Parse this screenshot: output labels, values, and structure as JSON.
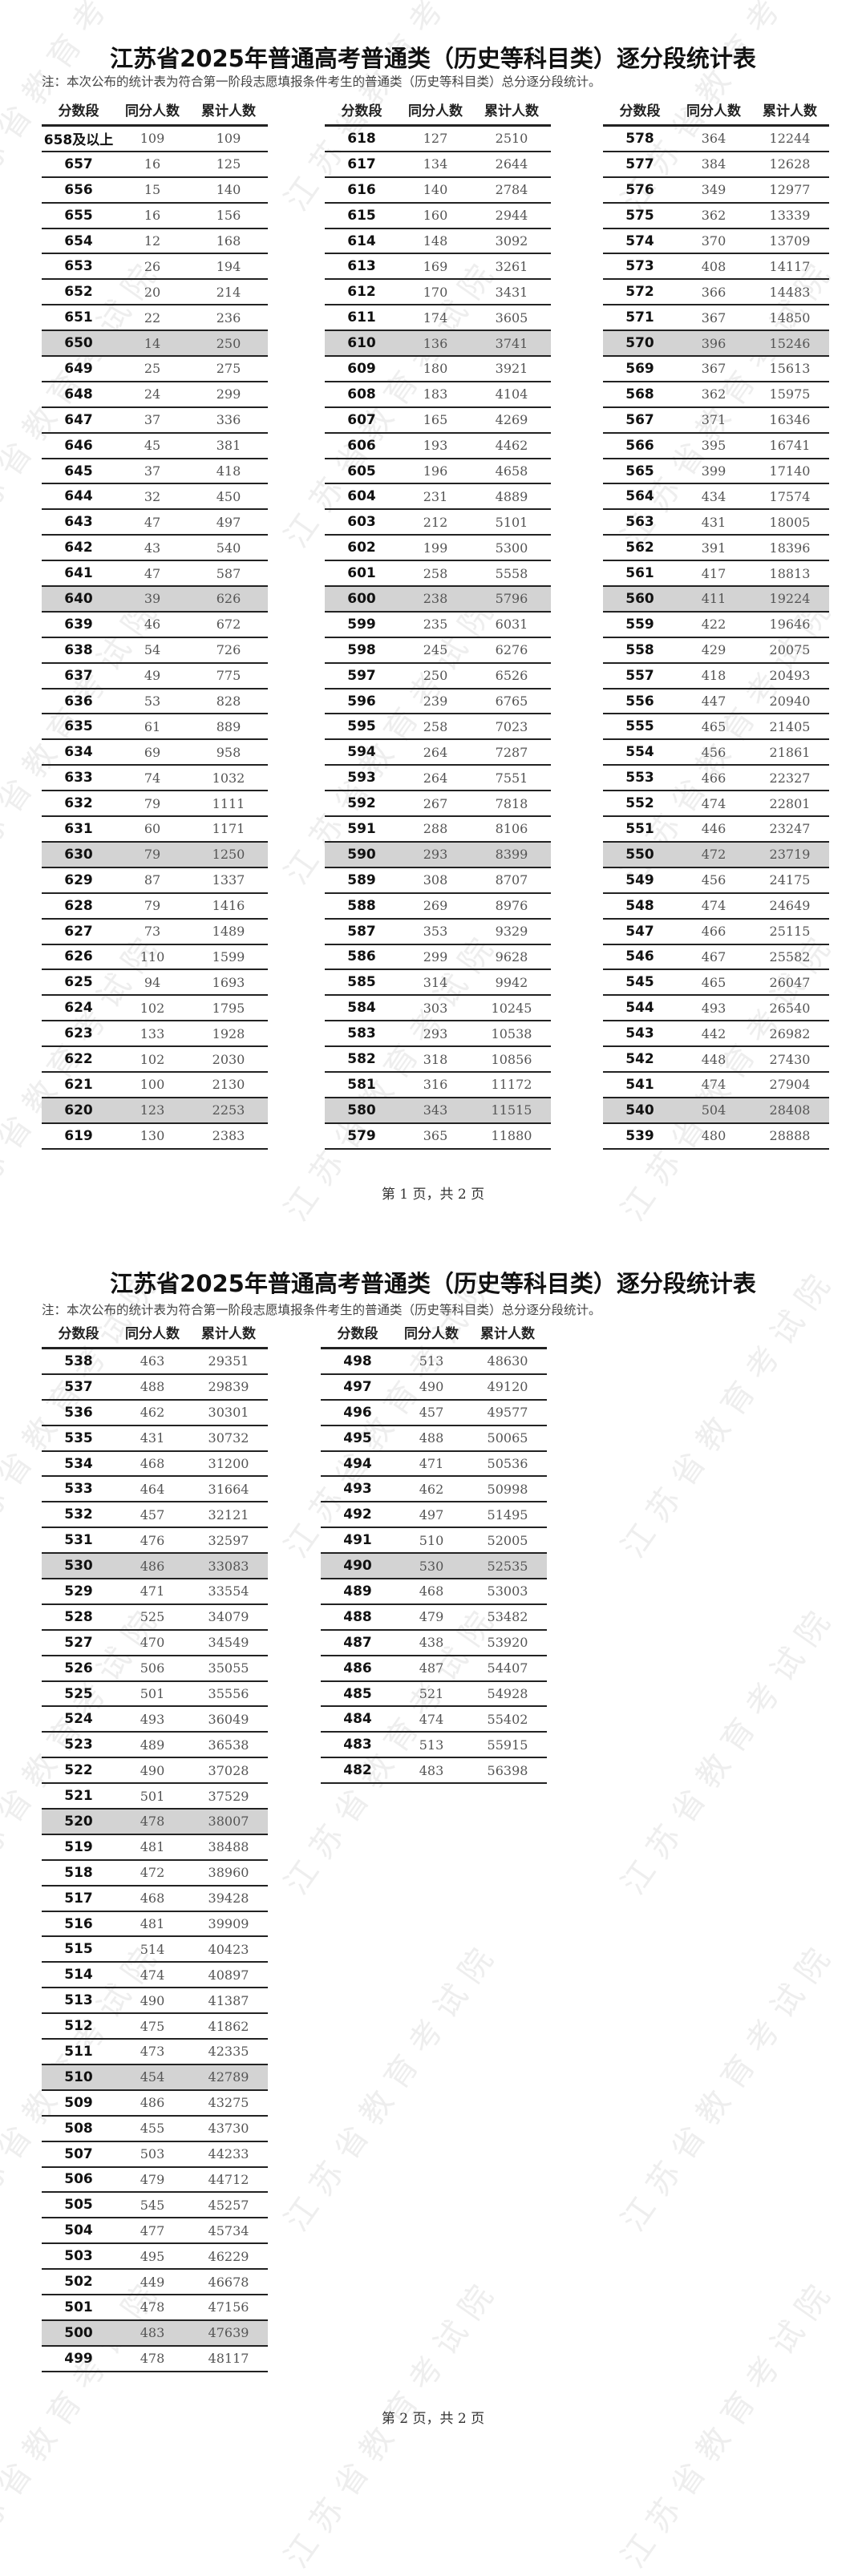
{
  "watermark": "江苏省教育考试院",
  "pages": [
    {
      "title": "江苏省2025年普通高考普通类（历史等科目类）逐分段统计表",
      "note": "注：本次公布的统计表为符合第一阶段志愿填报条件考生的普通类（历史等科目类）总分逐分段统计。",
      "headers": [
        "分数段",
        "同分人数",
        "累计人数"
      ],
      "footer": "第 1 页，共 2 页",
      "columns": [
        [
          [
            "658及以上",
            "109",
            "109"
          ],
          [
            "657",
            "16",
            "125"
          ],
          [
            "656",
            "15",
            "140"
          ],
          [
            "655",
            "16",
            "156"
          ],
          [
            "654",
            "12",
            "168"
          ],
          [
            "653",
            "26",
            "194"
          ],
          [
            "652",
            "20",
            "214"
          ],
          [
            "651",
            "22",
            "236"
          ],
          [
            "650",
            "14",
            "250"
          ],
          [
            "649",
            "25",
            "275"
          ],
          [
            "648",
            "24",
            "299"
          ],
          [
            "647",
            "37",
            "336"
          ],
          [
            "646",
            "45",
            "381"
          ],
          [
            "645",
            "37",
            "418"
          ],
          [
            "644",
            "32",
            "450"
          ],
          [
            "643",
            "47",
            "497"
          ],
          [
            "642",
            "43",
            "540"
          ],
          [
            "641",
            "47",
            "587"
          ],
          [
            "640",
            "39",
            "626"
          ],
          [
            "639",
            "46",
            "672"
          ],
          [
            "638",
            "54",
            "726"
          ],
          [
            "637",
            "49",
            "775"
          ],
          [
            "636",
            "53",
            "828"
          ],
          [
            "635",
            "61",
            "889"
          ],
          [
            "634",
            "69",
            "958"
          ],
          [
            "633",
            "74",
            "1032"
          ],
          [
            "632",
            "79",
            "1111"
          ],
          [
            "631",
            "60",
            "1171"
          ],
          [
            "630",
            "79",
            "1250"
          ],
          [
            "629",
            "87",
            "1337"
          ],
          [
            "628",
            "79",
            "1416"
          ],
          [
            "627",
            "73",
            "1489"
          ],
          [
            "626",
            "110",
            "1599"
          ],
          [
            "625",
            "94",
            "1693"
          ],
          [
            "624",
            "102",
            "1795"
          ],
          [
            "623",
            "133",
            "1928"
          ],
          [
            "622",
            "102",
            "2030"
          ],
          [
            "621",
            "100",
            "2130"
          ],
          [
            "620",
            "123",
            "2253"
          ],
          [
            "619",
            "130",
            "2383"
          ]
        ],
        [
          [
            "618",
            "127",
            "2510"
          ],
          [
            "617",
            "134",
            "2644"
          ],
          [
            "616",
            "140",
            "2784"
          ],
          [
            "615",
            "160",
            "2944"
          ],
          [
            "614",
            "148",
            "3092"
          ],
          [
            "613",
            "169",
            "3261"
          ],
          [
            "612",
            "170",
            "3431"
          ],
          [
            "611",
            "174",
            "3605"
          ],
          [
            "610",
            "136",
            "3741"
          ],
          [
            "609",
            "180",
            "3921"
          ],
          [
            "608",
            "183",
            "4104"
          ],
          [
            "607",
            "165",
            "4269"
          ],
          [
            "606",
            "193",
            "4462"
          ],
          [
            "605",
            "196",
            "4658"
          ],
          [
            "604",
            "231",
            "4889"
          ],
          [
            "603",
            "212",
            "5101"
          ],
          [
            "602",
            "199",
            "5300"
          ],
          [
            "601",
            "258",
            "5558"
          ],
          [
            "600",
            "238",
            "5796"
          ],
          [
            "599",
            "235",
            "6031"
          ],
          [
            "598",
            "245",
            "6276"
          ],
          [
            "597",
            "250",
            "6526"
          ],
          [
            "596",
            "239",
            "6765"
          ],
          [
            "595",
            "258",
            "7023"
          ],
          [
            "594",
            "264",
            "7287"
          ],
          [
            "593",
            "264",
            "7551"
          ],
          [
            "592",
            "267",
            "7818"
          ],
          [
            "591",
            "288",
            "8106"
          ],
          [
            "590",
            "293",
            "8399"
          ],
          [
            "589",
            "308",
            "8707"
          ],
          [
            "588",
            "269",
            "8976"
          ],
          [
            "587",
            "353",
            "9329"
          ],
          [
            "586",
            "299",
            "9628"
          ],
          [
            "585",
            "314",
            "9942"
          ],
          [
            "584",
            "303",
            "10245"
          ],
          [
            "583",
            "293",
            "10538"
          ],
          [
            "582",
            "318",
            "10856"
          ],
          [
            "581",
            "316",
            "11172"
          ],
          [
            "580",
            "343",
            "11515"
          ],
          [
            "579",
            "365",
            "11880"
          ]
        ],
        [
          [
            "578",
            "364",
            "12244"
          ],
          [
            "577",
            "384",
            "12628"
          ],
          [
            "576",
            "349",
            "12977"
          ],
          [
            "575",
            "362",
            "13339"
          ],
          [
            "574",
            "370",
            "13709"
          ],
          [
            "573",
            "408",
            "14117"
          ],
          [
            "572",
            "366",
            "14483"
          ],
          [
            "571",
            "367",
            "14850"
          ],
          [
            "570",
            "396",
            "15246"
          ],
          [
            "569",
            "367",
            "15613"
          ],
          [
            "568",
            "362",
            "15975"
          ],
          [
            "567",
            "371",
            "16346"
          ],
          [
            "566",
            "395",
            "16741"
          ],
          [
            "565",
            "399",
            "17140"
          ],
          [
            "564",
            "434",
            "17574"
          ],
          [
            "563",
            "431",
            "18005"
          ],
          [
            "562",
            "391",
            "18396"
          ],
          [
            "561",
            "417",
            "18813"
          ],
          [
            "560",
            "411",
            "19224"
          ],
          [
            "559",
            "422",
            "19646"
          ],
          [
            "558",
            "429",
            "20075"
          ],
          [
            "557",
            "418",
            "20493"
          ],
          [
            "556",
            "447",
            "20940"
          ],
          [
            "555",
            "465",
            "21405"
          ],
          [
            "554",
            "456",
            "21861"
          ],
          [
            "553",
            "466",
            "22327"
          ],
          [
            "552",
            "474",
            "22801"
          ],
          [
            "551",
            "446",
            "23247"
          ],
          [
            "550",
            "472",
            "23719"
          ],
          [
            "549",
            "456",
            "24175"
          ],
          [
            "548",
            "474",
            "24649"
          ],
          [
            "547",
            "466",
            "25115"
          ],
          [
            "546",
            "467",
            "25582"
          ],
          [
            "545",
            "465",
            "26047"
          ],
          [
            "544",
            "493",
            "26540"
          ],
          [
            "543",
            "442",
            "26982"
          ],
          [
            "542",
            "448",
            "27430"
          ],
          [
            "541",
            "474",
            "27904"
          ],
          [
            "540",
            "504",
            "28408"
          ],
          [
            "539",
            "480",
            "28888"
          ]
        ]
      ]
    },
    {
      "title": "江苏省2025年普通高考普通类（历史等科目类）逐分段统计表",
      "note": "注：本次公布的统计表为符合第一阶段志愿填报条件考生的普通类（历史等科目类）总分逐分段统计。",
      "headers": [
        "分数段",
        "同分人数",
        "累计人数"
      ],
      "footer": "第 2 页，共 2 页",
      "columns": [
        [
          [
            "538",
            "463",
            "29351"
          ],
          [
            "537",
            "488",
            "29839"
          ],
          [
            "536",
            "462",
            "30301"
          ],
          [
            "535",
            "431",
            "30732"
          ],
          [
            "534",
            "468",
            "31200"
          ],
          [
            "533",
            "464",
            "31664"
          ],
          [
            "532",
            "457",
            "32121"
          ],
          [
            "531",
            "476",
            "32597"
          ],
          [
            "530",
            "486",
            "33083"
          ],
          [
            "529",
            "471",
            "33554"
          ],
          [
            "528",
            "525",
            "34079"
          ],
          [
            "527",
            "470",
            "34549"
          ],
          [
            "526",
            "506",
            "35055"
          ],
          [
            "525",
            "501",
            "35556"
          ],
          [
            "524",
            "493",
            "36049"
          ],
          [
            "523",
            "489",
            "36538"
          ],
          [
            "522",
            "490",
            "37028"
          ],
          [
            "521",
            "501",
            "37529"
          ],
          [
            "520",
            "478",
            "38007"
          ],
          [
            "519",
            "481",
            "38488"
          ],
          [
            "518",
            "472",
            "38960"
          ],
          [
            "517",
            "468",
            "39428"
          ],
          [
            "516",
            "481",
            "39909"
          ],
          [
            "515",
            "514",
            "40423"
          ],
          [
            "514",
            "474",
            "40897"
          ],
          [
            "513",
            "490",
            "41387"
          ],
          [
            "512",
            "475",
            "41862"
          ],
          [
            "511",
            "473",
            "42335"
          ],
          [
            "510",
            "454",
            "42789"
          ],
          [
            "509",
            "486",
            "43275"
          ],
          [
            "508",
            "455",
            "43730"
          ],
          [
            "507",
            "503",
            "44233"
          ],
          [
            "506",
            "479",
            "44712"
          ],
          [
            "505",
            "545",
            "45257"
          ],
          [
            "504",
            "477",
            "45734"
          ],
          [
            "503",
            "495",
            "46229"
          ],
          [
            "502",
            "449",
            "46678"
          ],
          [
            "501",
            "478",
            "47156"
          ],
          [
            "500",
            "483",
            "47639"
          ],
          [
            "499",
            "478",
            "48117"
          ]
        ],
        [
          [
            "498",
            "513",
            "48630"
          ],
          [
            "497",
            "490",
            "49120"
          ],
          [
            "496",
            "457",
            "49577"
          ],
          [
            "495",
            "488",
            "50065"
          ],
          [
            "494",
            "471",
            "50536"
          ],
          [
            "493",
            "462",
            "50998"
          ],
          [
            "492",
            "497",
            "51495"
          ],
          [
            "491",
            "510",
            "52005"
          ],
          [
            "490",
            "530",
            "52535"
          ],
          [
            "489",
            "468",
            "53003"
          ],
          [
            "488",
            "479",
            "53482"
          ],
          [
            "487",
            "438",
            "53920"
          ],
          [
            "486",
            "487",
            "54407"
          ],
          [
            "485",
            "521",
            "54928"
          ],
          [
            "484",
            "474",
            "55402"
          ],
          [
            "483",
            "513",
            "55915"
          ],
          [
            "482",
            "483",
            "56398"
          ]
        ]
      ]
    }
  ]
}
